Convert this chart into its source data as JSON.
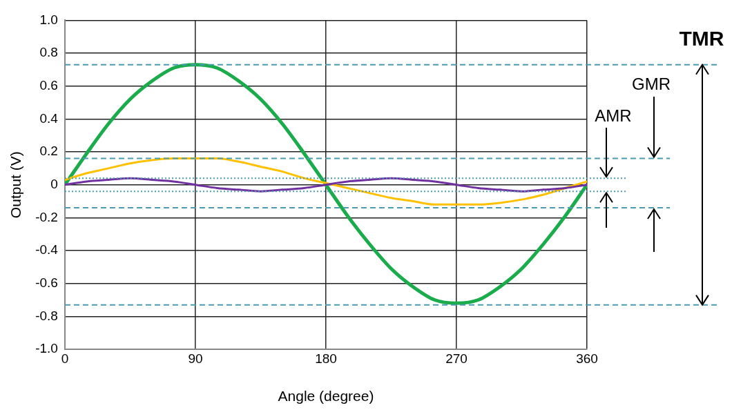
{
  "chart_data": {
    "type": "line",
    "xlabel": "Angle (degree)",
    "ylabel": "Output (V)",
    "x": [
      0,
      15,
      30,
      45,
      60,
      75,
      90,
      105,
      120,
      135,
      150,
      165,
      180,
      195,
      210,
      225,
      240,
      255,
      270,
      285,
      300,
      315,
      330,
      345,
      360
    ],
    "series": [
      {
        "color": "#1aab4b",
        "values": [
          0,
          0.19,
          0.37,
          0.52,
          0.63,
          0.71,
          0.73,
          0.71,
          0.63,
          0.52,
          0.37,
          0.19,
          0,
          -0.19,
          -0.36,
          -0.51,
          -0.62,
          -0.7,
          -0.72,
          -0.7,
          -0.62,
          -0.51,
          -0.36,
          -0.19,
          0
        ]
      },
      {
        "color": "#ffc000",
        "values": [
          0.03,
          0.07,
          0.1,
          0.13,
          0.15,
          0.16,
          0.16,
          0.16,
          0.14,
          0.11,
          0.08,
          0.04,
          0.01,
          -0.02,
          -0.05,
          -0.08,
          -0.1,
          -0.12,
          -0.12,
          -0.12,
          -0.11,
          -0.09,
          -0.06,
          -0.02,
          0.02
        ]
      },
      {
        "color": "#7030a0",
        "values": [
          0,
          0.02,
          0.03,
          0.04,
          0.03,
          0.02,
          0,
          -0.02,
          -0.03,
          -0.04,
          -0.03,
          -0.02,
          0,
          0.02,
          0.03,
          0.04,
          0.03,
          0.02,
          0,
          -0.02,
          -0.03,
          -0.04,
          -0.03,
          -0.02,
          0
        ]
      }
    ],
    "xlim": [
      0,
      360
    ],
    "xticks": [
      0,
      90,
      180,
      270,
      360
    ],
    "ylim": [
      -1,
      1
    ],
    "yticks": [
      {
        "value": -1,
        "label": "-1.0"
      },
      -0.8,
      -0.6,
      -0.4,
      -0.2,
      0,
      0.2,
      0.4,
      0.6,
      0.8,
      {
        "value": 1,
        "label": "1.0"
      }
    ],
    "grid": true,
    "legend": false,
    "marker": "none",
    "line_style": "solid",
    "ref_lines": [
      {
        "axis": "y",
        "value": 0.73,
        "color": "#4a9bb0",
        "line_style": "dashed"
      },
      {
        "axis": "y",
        "value": -0.73,
        "color": "#4a9bb0",
        "line_style": "dashed"
      },
      {
        "axis": "y",
        "value": 0.16,
        "color": "#4a9bb0",
        "line_style": "dashed"
      },
      {
        "axis": "y",
        "value": -0.14,
        "color": "#4a9bb0",
        "line_style": "dashed"
      },
      {
        "axis": "y",
        "value": 0.04,
        "color": "#4a9bb0",
        "line_style": "dotted"
      },
      {
        "axis": "y",
        "value": -0.04,
        "color": "#4a9bb0",
        "line_style": "dotted"
      }
    ],
    "annotations": [
      "TMR",
      "GMR",
      "AMR"
    ]
  }
}
